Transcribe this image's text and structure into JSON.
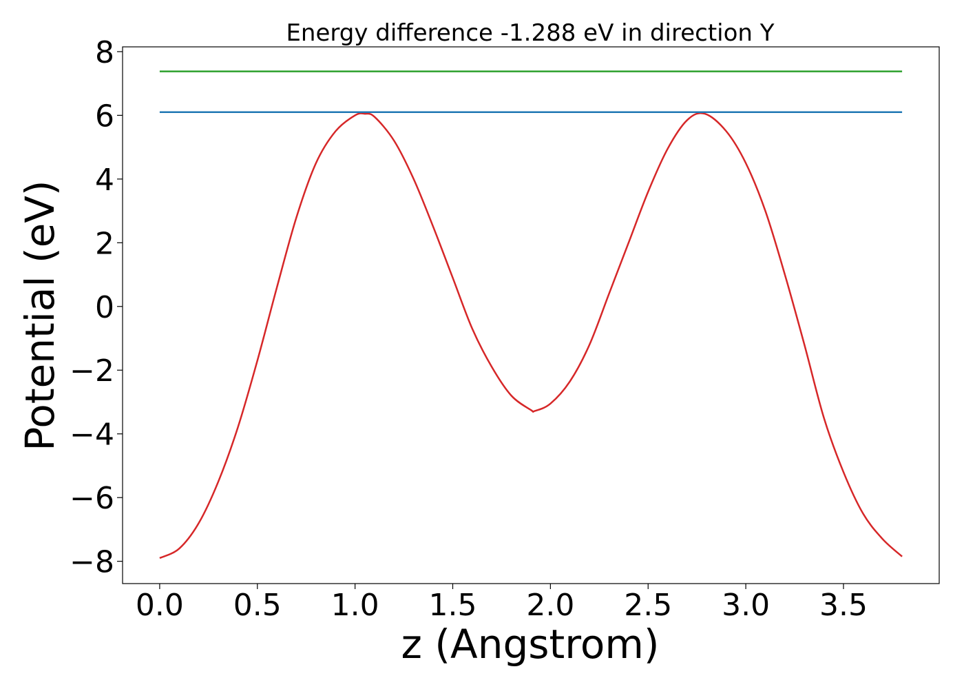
{
  "chart_data": {
    "type": "line",
    "title": "Energy difference -1.288 eV in direction Y",
    "xlabel": "z (Angstrom)",
    "ylabel": "Potential (eV)",
    "xlim": [
      -0.19,
      3.99
    ],
    "ylim": [
      -8.7,
      8.15
    ],
    "xticks": [
      0.0,
      0.5,
      1.0,
      1.5,
      2.0,
      2.5,
      3.0,
      3.5
    ],
    "xtick_labels": [
      "0.0",
      "0.5",
      "1.0",
      "1.5",
      "2.0",
      "2.5",
      "3.0",
      "3.5"
    ],
    "yticks": [
      -8,
      -6,
      -4,
      -2,
      0,
      2,
      4,
      6,
      8
    ],
    "ytick_labels": [
      "−8",
      "−6",
      "−4",
      "−2",
      "0",
      "2",
      "4",
      "6",
      "8"
    ],
    "grid": false,
    "legend": "none",
    "series": [
      {
        "color": "#d62728",
        "style": "curve",
        "x": [
          0.0,
          0.1,
          0.2,
          0.3,
          0.4,
          0.5,
          0.6,
          0.7,
          0.8,
          0.9,
          1.0,
          1.05,
          1.1,
          1.2,
          1.3,
          1.4,
          1.5,
          1.6,
          1.7,
          1.8,
          1.9,
          1.92,
          2.0,
          2.1,
          2.2,
          2.3,
          2.4,
          2.5,
          2.6,
          2.7,
          2.79,
          2.9,
          3.0,
          3.1,
          3.2,
          3.3,
          3.4,
          3.5,
          3.6,
          3.7,
          3.8
        ],
        "y": [
          -7.9,
          -7.6,
          -6.8,
          -5.5,
          -3.8,
          -1.7,
          0.6,
          2.8,
          4.5,
          5.5,
          6.0,
          6.05,
          5.95,
          5.2,
          4.0,
          2.5,
          0.9,
          -0.7,
          -1.9,
          -2.8,
          -3.25,
          -3.28,
          -3.05,
          -2.35,
          -1.2,
          0.4,
          2.0,
          3.6,
          4.95,
          5.85,
          6.05,
          5.5,
          4.5,
          3.0,
          1.0,
          -1.2,
          -3.5,
          -5.2,
          -6.5,
          -7.3,
          -7.85
        ]
      },
      {
        "color": "#1f77b4",
        "style": "flat",
        "x": [
          0.0,
          3.8
        ],
        "y": [
          6.1,
          6.1
        ]
      },
      {
        "color": "#2ca02c",
        "style": "flat",
        "x": [
          0.0,
          3.8
        ],
        "y": [
          7.38,
          7.38
        ]
      }
    ]
  }
}
